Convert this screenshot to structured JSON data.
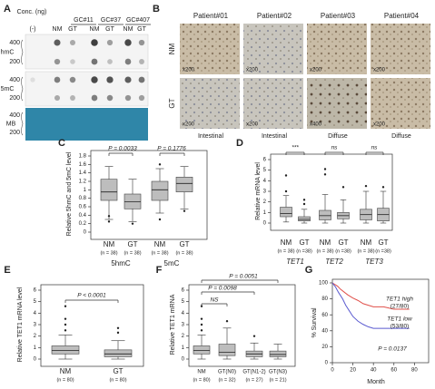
{
  "panel_a": {
    "label": "A",
    "conc_title": "Conc. (ng)",
    "groups": [
      "GC#11",
      "GC#37",
      "GC#407"
    ],
    "lanes": [
      "(-)",
      "NM",
      "GT",
      "NM",
      "GT",
      "NM",
      "GT"
    ],
    "rows": [
      {
        "name": "hmC",
        "conc": [
          400,
          200
        ]
      },
      {
        "name": "5mC",
        "conc": [
          400,
          200
        ]
      },
      {
        "name": "MB",
        "conc": [
          400,
          200
        ]
      }
    ]
  },
  "panel_b": {
    "label": "B",
    "patients": [
      "Patient#01",
      "Patient#02",
      "Patient#03",
      "Patient#04"
    ],
    "rows": [
      "NM",
      "GT"
    ],
    "magnifications": [
      [
        "x200",
        "x200",
        "x200",
        "x200"
      ],
      [
        "x200",
        "x200",
        "x400",
        "x200"
      ]
    ],
    "types": [
      "Intestinal",
      "Intestinal",
      "Diffuse",
      "Diffuse"
    ]
  },
  "panel_c": {
    "label": "C",
    "type": "box",
    "y_label": "Relative 5hmC and 5mC level",
    "ylim": [
      0,
      1.8
    ],
    "yticks": [
      0,
      0.2,
      0.4,
      0.6,
      0.8,
      1,
      1.2,
      1.4,
      1.6,
      1.8
    ],
    "boxes": [
      {
        "label": "NM",
        "n": "(n = 38)",
        "whisker_low": 0.3,
        "q1": 0.75,
        "median": 0.95,
        "q3": 1.25,
        "whisker_high": 1.55,
        "outliers": [
          0.25,
          0.38
        ]
      },
      {
        "label": "GT",
        "n": "(n = 38)",
        "whisker_low": 0.25,
        "q1": 0.55,
        "median": 0.72,
        "q3": 0.9,
        "whisker_high": 1.25,
        "outliers": [
          0.2
        ]
      },
      {
        "label": "NM",
        "n": "(n = 38)",
        "whisker_low": 0.45,
        "q1": 0.75,
        "median": 1.0,
        "q3": 1.2,
        "whisker_high": 1.5,
        "outliers": [
          0.3,
          1.6
        ]
      },
      {
        "label": "GT",
        "n": "(n = 38)",
        "whisker_low": 0.55,
        "q1": 0.95,
        "median": 1.15,
        "q3": 1.3,
        "whisker_high": 1.55,
        "outliers": [
          0.5
        ]
      }
    ],
    "groups": [
      "5hmC",
      "5mC"
    ],
    "annotations": [
      "P = 0.0033",
      "P = 0.1776"
    ]
  },
  "panel_d": {
    "label": "D",
    "type": "box",
    "y_label": "Relative mRNA level",
    "ylim": [
      0,
      6
    ],
    "yticks": [
      0,
      1,
      2,
      3,
      4,
      5,
      6
    ],
    "boxes": [
      {
        "label": "NM",
        "n": "(n = 38)",
        "whisker_low": 0.1,
        "q1": 0.6,
        "median": 0.9,
        "q3": 1.5,
        "whisker_high": 2.6,
        "outliers": [
          3.0,
          4.5
        ]
      },
      {
        "label": "GT",
        "n": "(n =38)",
        "whisker_low": 0,
        "q1": 0.2,
        "median": 0.35,
        "q3": 0.6,
        "whisker_high": 1.3,
        "outliers": [
          1.8,
          2.2
        ]
      },
      {
        "label": "NM",
        "n": "(n = 38)",
        "whisker_low": 0,
        "q1": 0.3,
        "median": 0.7,
        "q3": 1.2,
        "whisker_high": 2.7,
        "outliers": [
          4.6,
          5.1
        ]
      },
      {
        "label": "GT",
        "n": "(n =38)",
        "whisker_low": 0,
        "q1": 0.4,
        "median": 0.7,
        "q3": 1.0,
        "whisker_high": 2.2,
        "outliers": [
          3.4
        ]
      },
      {
        "label": "NM",
        "n": "(n = 38)",
        "whisker_low": 0,
        "q1": 0.3,
        "median": 0.8,
        "q3": 1.3,
        "whisker_high": 3.0,
        "outliers": [
          3.5
        ]
      },
      {
        "label": "GT",
        "n": "(n =38)",
        "whisker_low": 0,
        "q1": 0.2,
        "median": 0.8,
        "q3": 1.4,
        "whisker_high": 3.0,
        "outliers": [
          3.4
        ]
      }
    ],
    "groups": [
      "TET1",
      "TET2",
      "TET3"
    ],
    "annotations": [
      "***",
      "ns",
      "ns"
    ]
  },
  "panel_e": {
    "label": "E",
    "type": "box",
    "y_label": "Relative TET1 mRNA level",
    "ylim": [
      0,
      6
    ],
    "yticks": [
      0,
      1,
      2,
      3,
      4,
      5,
      6
    ],
    "boxes": [
      {
        "label": "NM",
        "n": "(n = 80)",
        "whisker_low": 0,
        "q1": 0.45,
        "median": 0.75,
        "q3": 1.15,
        "whisker_high": 2.1,
        "outliers": [
          2.5,
          3.0,
          3.5,
          4.6
        ]
      },
      {
        "label": "GT",
        "n": "(n = 80)",
        "whisker_low": 0,
        "q1": 0.2,
        "median": 0.45,
        "q3": 0.8,
        "whisker_high": 1.6,
        "outliers": [
          2.3,
          2.7
        ]
      }
    ],
    "annotations": [
      "P < 0.0001"
    ]
  },
  "panel_f": {
    "label": "F",
    "type": "box",
    "y_label": "Relative TET1 mRNA",
    "ylim": [
      0,
      6
    ],
    "yticks": [
      0,
      1,
      2,
      3,
      4,
      5,
      6
    ],
    "boxes": [
      {
        "label": "NM",
        "n": "(n = 80)",
        "whisker_low": 0,
        "q1": 0.45,
        "median": 0.75,
        "q3": 1.15,
        "whisker_high": 2.1,
        "outliers": [
          2.5,
          3.0,
          3.5,
          4.6
        ]
      },
      {
        "label": "GT(N0)",
        "n": "(n = 32)",
        "whisker_low": 0,
        "q1": 0.3,
        "median": 0.6,
        "q3": 1.3,
        "whisker_high": 2.7,
        "outliers": [
          3.3
        ]
      },
      {
        "label": "GT(N1-2)",
        "n": "(n = 27)",
        "whisker_low": 0,
        "q1": 0.2,
        "median": 0.45,
        "q3": 0.7,
        "whisker_high": 1.4,
        "outliers": [
          2.0
        ]
      },
      {
        "label": "GT(N3)",
        "n": "(n = 21)",
        "whisker_low": 0,
        "q1": 0.2,
        "median": 0.4,
        "q3": 0.7,
        "whisker_high": 1.3,
        "outliers": []
      }
    ],
    "annotations": [
      "P = 0.0051",
      "P = 0.0098",
      "NS"
    ]
  },
  "panel_g": {
    "label": "G",
    "type": "line",
    "y_label": "% Survival",
    "x_label": "Month",
    "xlim": [
      0,
      85
    ],
    "ylim": [
      0,
      100
    ],
    "xticks": [
      0,
      20,
      40,
      60,
      80
    ],
    "yticks": [
      0,
      20,
      40,
      60,
      80,
      100
    ],
    "annotation": "P = 0.0137",
    "series": [
      {
        "name": "TET1 high",
        "count": "(27/80)",
        "color": "#e0504a",
        "x": [
          0,
          5,
          8,
          12,
          15,
          20,
          25,
          30,
          40,
          50,
          60,
          75
        ],
        "values": [
          100,
          96,
          92,
          88,
          85,
          81,
          78,
          74,
          70,
          70,
          67,
          67
        ]
      },
      {
        "name": "TET1 low",
        "count": "(53/80)",
        "color": "#5b5bd0",
        "x": [
          0,
          3,
          6,
          10,
          13,
          16,
          20,
          25,
          30,
          35,
          40,
          50,
          60,
          75
        ],
        "values": [
          100,
          95,
          88,
          80,
          72,
          66,
          58,
          52,
          48,
          45,
          43,
          43,
          43,
          43
        ]
      }
    ]
  }
}
